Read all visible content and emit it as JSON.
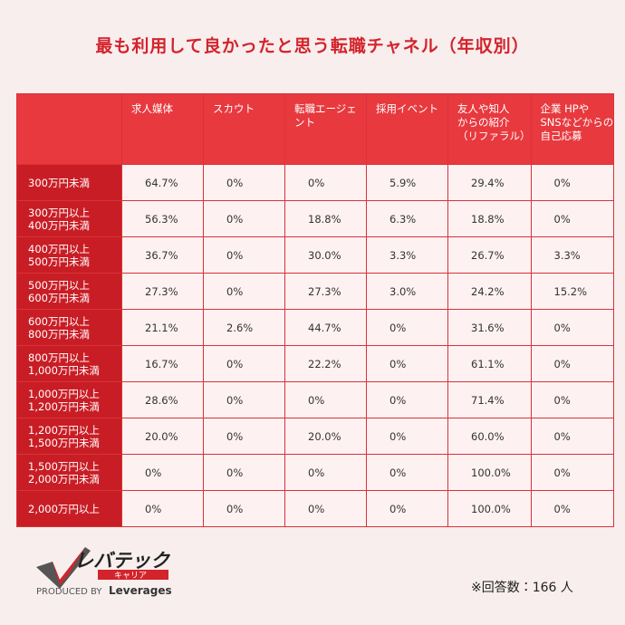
{
  "title": "最も利用して良かったと思う転職チャネル（年収別）",
  "table": {
    "header": [
      [
        "求人媒体"
      ],
      [
        "スカウト"
      ],
      [
        "転職エージェ",
        "ント"
      ],
      [
        "採用イベント"
      ],
      [
        "友人や知人",
        "からの紹介",
        "（リファラル）"
      ],
      [
        "企業 HPや",
        "SNSなどからの",
        "自己応募"
      ]
    ],
    "rows": [
      {
        "label": [
          "300万円未満"
        ],
        "cells": [
          "64.7%",
          "0%",
          "0%",
          "5.9%",
          "29.4%",
          "0%"
        ]
      },
      {
        "label": [
          "300万円以上",
          "400万円未満"
        ],
        "cells": [
          "56.3%",
          "0%",
          "18.8%",
          "6.3%",
          "18.8%",
          "0%"
        ]
      },
      {
        "label": [
          "400万円以上",
          "500万円未満"
        ],
        "cells": [
          "36.7%",
          "0%",
          "30.0%",
          "3.3%",
          "26.7%",
          "3.3%"
        ]
      },
      {
        "label": [
          "500万円以上",
          "600万円未満"
        ],
        "cells": [
          "27.3%",
          "0%",
          "27.3%",
          "3.0%",
          "24.2%",
          "15.2%"
        ]
      },
      {
        "label": [
          "600万円以上",
          "800万円未満"
        ],
        "cells": [
          "21.1%",
          "2.6%",
          "44.7%",
          "0%",
          "31.6%",
          "0%"
        ]
      },
      {
        "label": [
          "800万円以上",
          "1,000万円未満"
        ],
        "cells": [
          "16.7%",
          "0%",
          "22.2%",
          "0%",
          "61.1%",
          "0%"
        ]
      },
      {
        "label": [
          "1,000万円以上",
          "1,200万円未満"
        ],
        "cells": [
          "28.6%",
          "0%",
          "0%",
          "0%",
          "71.4%",
          "0%"
        ]
      },
      {
        "label": [
          "1,200万円以上",
          "1,500万円未満"
        ],
        "cells": [
          "20.0%",
          "0%",
          "20.0%",
          "0%",
          "60.0%",
          "0%"
        ]
      },
      {
        "label": [
          "1,500万円以上",
          "2,000万円未満"
        ],
        "cells": [
          "0%",
          "0%",
          "0%",
          "0%",
          "100.0%",
          "0%"
        ]
      },
      {
        "label": [
          "2,000万円以上"
        ],
        "cells": [
          "0%",
          "0%",
          "0%",
          "0%",
          "100.0%",
          "0%"
        ]
      }
    ]
  },
  "logo": {
    "name": "レバテック",
    "sub": "キャリア",
    "produced": "PRODUCED BY",
    "brand": "Leverages"
  },
  "note": "※回答数：166 人"
}
